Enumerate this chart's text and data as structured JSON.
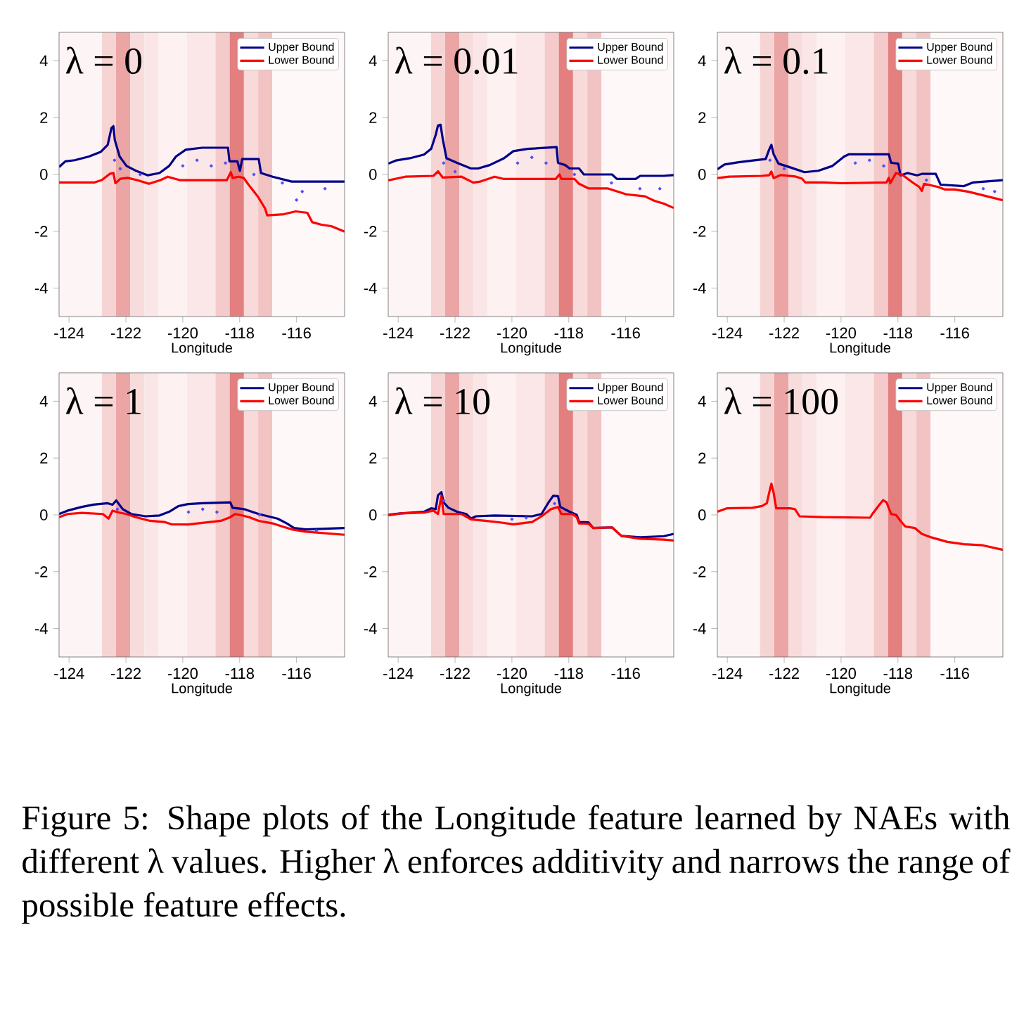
{
  "chart_data": [
    {
      "type": "line",
      "title": "λ = 0",
      "xlabel": "Longitude",
      "xlim": [
        -124.35,
        -114.31
      ],
      "ylim": [
        -5,
        5
      ],
      "xticks": [
        -124,
        -122,
        -120,
        -118,
        -116
      ],
      "yticks": [
        -4,
        -2,
        0,
        2,
        4
      ],
      "legend": "top right",
      "bands": [
        {
          "axis": "x",
          "from": -124.35,
          "to": -122.85,
          "color": "#fdf5f5"
        },
        {
          "axis": "x",
          "from": -122.85,
          "to": -122.35,
          "color": "#f7d4d4"
        },
        {
          "axis": "x",
          "from": -122.35,
          "to": -121.85,
          "color": "#eba5a5"
        },
        {
          "axis": "x",
          "from": -121.85,
          "to": -121.35,
          "color": "#f8dcdc"
        },
        {
          "axis": "x",
          "from": -121.35,
          "to": -120.85,
          "color": "#fae6e6"
        },
        {
          "axis": "x",
          "from": -120.85,
          "to": -119.85,
          "color": "#fdf1f1"
        },
        {
          "axis": "x",
          "from": -119.85,
          "to": -118.85,
          "color": "#fbe7e7"
        },
        {
          "axis": "x",
          "from": -118.85,
          "to": -118.35,
          "color": "#f4caca"
        },
        {
          "axis": "x",
          "from": -118.35,
          "to": -117.85,
          "color": "#e37f7f"
        },
        {
          "axis": "x",
          "from": -117.85,
          "to": -117.35,
          "color": "#f8dada"
        },
        {
          "axis": "x",
          "from": -117.35,
          "to": -116.85,
          "color": "#f2c3c3"
        },
        {
          "axis": "x",
          "from": -116.85,
          "to": -114.31,
          "color": "#fef8f8"
        }
      ],
      "series": [
        {
          "type": "scatter",
          "color": "#4d4dff",
          "x": [
            -122.4,
            -122.2,
            -121.5,
            -120.0,
            -119.5,
            -119.0,
            -118.5,
            -117.5,
            -116.5,
            -115.8,
            -115.0,
            -116.0
          ],
          "values": [
            0.5,
            0.2,
            0.0,
            0.3,
            0.5,
            0.3,
            0.4,
            0.0,
            -0.3,
            -0.6,
            -0.5,
            -0.9
          ]
        },
        {
          "type": "line",
          "name": "Upper Bound",
          "color": "#00008b",
          "x": [
            -124.35,
            -124.13,
            -123.8,
            -123.3,
            -122.89,
            -122.64,
            -122.51,
            -122.44,
            -122.39,
            -122.22,
            -121.98,
            -121.65,
            -121.23,
            -120.82,
            -120.48,
            -120.24,
            -119.9,
            -119.32,
            -118.41,
            -118.36,
            -118.08,
            -117.99,
            -117.91,
            -117.67,
            -117.33,
            -117.25,
            -116.84,
            -116.17,
            -114.31
          ],
          "values": [
            0.26,
            0.46,
            0.5,
            0.63,
            0.79,
            1.04,
            1.63,
            1.7,
            1.21,
            0.63,
            0.3,
            0.13,
            -0.03,
            0.05,
            0.3,
            0.63,
            0.87,
            0.94,
            0.94,
            0.46,
            0.46,
            0.13,
            0.54,
            0.54,
            0.54,
            0.05,
            -0.08,
            -0.25,
            -0.25
          ]
        },
        {
          "type": "line",
          "name": "Lower Bound",
          "color": "#ff0000",
          "x": [
            -124.35,
            -123.1,
            -122.85,
            -122.57,
            -122.44,
            -122.37,
            -122.19,
            -121.94,
            -121.61,
            -121.19,
            -120.78,
            -120.53,
            -120.11,
            -118.45,
            -118.31,
            -118.25,
            -118.03,
            -117.86,
            -117.69,
            -117.36,
            -117.11,
            -117.03,
            -116.45,
            -116.03,
            -115.62,
            -115.45,
            -115.12,
            -114.78,
            -114.31
          ],
          "values": [
            -0.28,
            -0.28,
            -0.2,
            0.02,
            0.05,
            -0.31,
            -0.15,
            -0.12,
            -0.2,
            -0.33,
            -0.2,
            -0.08,
            -0.2,
            -0.2,
            0.08,
            -0.12,
            -0.08,
            -0.12,
            -0.36,
            -0.78,
            -1.19,
            -1.44,
            -1.4,
            -1.3,
            -1.35,
            -1.68,
            -1.77,
            -1.82,
            -2.01
          ]
        }
      ]
    },
    {
      "type": "line",
      "title": "λ = 0.01",
      "xlabel": "Longitude",
      "xlim": [
        -124.35,
        -114.31
      ],
      "ylim": [
        -5,
        5
      ],
      "xticks": [
        -124,
        -122,
        -120,
        -118,
        -116
      ],
      "yticks": [
        -4,
        -2,
        0,
        2,
        4
      ],
      "legend": "top right",
      "bands": [
        {
          "axis": "x",
          "from": -124.35,
          "to": -122.85,
          "color": "#fdf5f5"
        },
        {
          "axis": "x",
          "from": -122.85,
          "to": -122.35,
          "color": "#f7d4d4"
        },
        {
          "axis": "x",
          "from": -122.35,
          "to": -121.85,
          "color": "#eba5a5"
        },
        {
          "axis": "x",
          "from": -121.85,
          "to": -121.35,
          "color": "#f8dcdc"
        },
        {
          "axis": "x",
          "from": -121.35,
          "to": -120.85,
          "color": "#fae6e6"
        },
        {
          "axis": "x",
          "from": -120.85,
          "to": -119.85,
          "color": "#fdf1f1"
        },
        {
          "axis": "x",
          "from": -119.85,
          "to": -118.85,
          "color": "#fbe7e7"
        },
        {
          "axis": "x",
          "from": -118.85,
          "to": -118.35,
          "color": "#f4caca"
        },
        {
          "axis": "x",
          "from": -118.35,
          "to": -117.85,
          "color": "#e37f7f"
        },
        {
          "axis": "x",
          "from": -117.85,
          "to": -117.35,
          "color": "#f8dada"
        },
        {
          "axis": "x",
          "from": -117.35,
          "to": -116.85,
          "color": "#f2c3c3"
        },
        {
          "axis": "x",
          "from": -116.85,
          "to": -114.31,
          "color": "#fef8f8"
        }
      ],
      "series": [
        {
          "type": "scatter",
          "color": "#4d4dff",
          "x": [
            -122.4,
            -122.0,
            -119.8,
            -119.3,
            -118.8,
            -117.8,
            -116.5,
            -115.5,
            -114.8
          ],
          "values": [
            0.4,
            0.1,
            0.4,
            0.6,
            0.4,
            0.0,
            -0.3,
            -0.5,
            -0.5
          ]
        },
        {
          "type": "line",
          "name": "Upper Bound",
          "color": "#00008b",
          "x": [
            -124.35,
            -124.08,
            -123.59,
            -123.09,
            -122.84,
            -122.68,
            -122.6,
            -122.51,
            -122.43,
            -122.3,
            -121.93,
            -121.44,
            -121.19,
            -120.78,
            -120.28,
            -119.95,
            -119.45,
            -118.96,
            -118.43,
            -118.38,
            -118.13,
            -117.97,
            -117.64,
            -117.47,
            -117.14,
            -116.48,
            -116.31,
            -115.65,
            -115.49,
            -114.66,
            -114.31
          ],
          "values": [
            0.38,
            0.49,
            0.57,
            0.7,
            0.9,
            1.39,
            1.72,
            1.75,
            1.23,
            0.57,
            0.41,
            0.21,
            0.21,
            0.33,
            0.57,
            0.82,
            0.9,
            0.93,
            0.96,
            0.41,
            0.33,
            0.21,
            0.21,
            0.0,
            0.0,
            0.0,
            -0.16,
            -0.16,
            -0.05,
            -0.05,
            -0.02
          ]
        },
        {
          "type": "line",
          "name": "Lower Bound",
          "color": "#ff0000",
          "x": [
            -124.35,
            -123.75,
            -122.76,
            -122.6,
            -122.43,
            -121.77,
            -121.36,
            -121.11,
            -120.61,
            -120.28,
            -118.46,
            -118.33,
            -118.26,
            -117.8,
            -117.64,
            -117.31,
            -116.64,
            -115.98,
            -115.32,
            -114.99,
            -114.66,
            -114.31
          ],
          "values": [
            -0.21,
            -0.08,
            -0.05,
            0.11,
            -0.11,
            -0.08,
            -0.29,
            -0.25,
            -0.08,
            -0.16,
            -0.16,
            0.0,
            -0.16,
            -0.16,
            -0.33,
            -0.49,
            -0.49,
            -0.7,
            -0.77,
            -0.93,
            -1.03,
            -1.18
          ]
        }
      ]
    },
    {
      "type": "line",
      "title": "λ = 0.1",
      "xlabel": "Longitude",
      "xlim": [
        -124.35,
        -114.31
      ],
      "ylim": [
        -5,
        5
      ],
      "xticks": [
        -124,
        -122,
        -120,
        -118,
        -116
      ],
      "yticks": [
        -4,
        -2,
        0,
        2,
        4
      ],
      "legend": "top right",
      "bands": [
        {
          "axis": "x",
          "from": -124.35,
          "to": -122.85,
          "color": "#fdf5f5"
        },
        {
          "axis": "x",
          "from": -122.85,
          "to": -122.35,
          "color": "#f7d4d4"
        },
        {
          "axis": "x",
          "from": -122.35,
          "to": -121.85,
          "color": "#eba5a5"
        },
        {
          "axis": "x",
          "from": -121.85,
          "to": -121.35,
          "color": "#f8dcdc"
        },
        {
          "axis": "x",
          "from": -121.35,
          "to": -120.85,
          "color": "#fae6e6"
        },
        {
          "axis": "x",
          "from": -120.85,
          "to": -119.85,
          "color": "#fdf1f1"
        },
        {
          "axis": "x",
          "from": -119.85,
          "to": -118.85,
          "color": "#fbe7e7"
        },
        {
          "axis": "x",
          "from": -118.85,
          "to": -118.35,
          "color": "#f4caca"
        },
        {
          "axis": "x",
          "from": -118.35,
          "to": -117.85,
          "color": "#e37f7f"
        },
        {
          "axis": "x",
          "from": -117.85,
          "to": -117.35,
          "color": "#f8dada"
        },
        {
          "axis": "x",
          "from": -117.35,
          "to": -116.85,
          "color": "#f2c3c3"
        },
        {
          "axis": "x",
          "from": -116.85,
          "to": -114.31,
          "color": "#fef8f8"
        }
      ],
      "series": [
        {
          "type": "scatter",
          "color": "#4d4dff",
          "x": [
            -122.5,
            -122.0,
            -119.5,
            -119.0,
            -118.5,
            -117.0,
            -115.0,
            -114.6
          ],
          "values": [
            0.5,
            0.2,
            0.4,
            0.5,
            0.3,
            -0.2,
            -0.5,
            -0.6
          ]
        },
        {
          "type": "line",
          "name": "Upper Bound",
          "color": "#00008b",
          "x": [
            -124.35,
            -124.1,
            -123.6,
            -122.94,
            -122.65,
            -122.53,
            -122.45,
            -122.37,
            -122.2,
            -121.79,
            -121.29,
            -120.8,
            -120.3,
            -119.89,
            -119.72,
            -118.32,
            -118.24,
            -117.99,
            -117.91,
            -117.66,
            -117.33,
            -117.16,
            -116.67,
            -116.5,
            -115.68,
            -115.35,
            -114.31
          ],
          "values": [
            0.18,
            0.35,
            0.43,
            0.51,
            0.54,
            0.87,
            1.04,
            0.71,
            0.38,
            0.25,
            0.08,
            0.13,
            0.3,
            0.63,
            0.71,
            0.71,
            0.41,
            0.38,
            -0.03,
            0.05,
            -0.03,
            0.02,
            0.02,
            -0.36,
            -0.41,
            -0.28,
            -0.2
          ]
        },
        {
          "type": "line",
          "name": "Lower Bound",
          "color": "#ff0000",
          "x": [
            -124.35,
            -123.93,
            -122.78,
            -122.53,
            -122.45,
            -122.37,
            -122.12,
            -121.62,
            -121.37,
            -121.26,
            -120.63,
            -119.97,
            -118.4,
            -118.32,
            -118.27,
            -118.07,
            -117.82,
            -117.49,
            -117.25,
            -117.16,
            -117.08,
            -116.59,
            -116.34,
            -116.01,
            -115.51,
            -114.31
          ],
          "values": [
            -0.13,
            -0.08,
            -0.05,
            -0.03,
            0.1,
            -0.13,
            -0.02,
            -0.07,
            -0.15,
            -0.28,
            -0.28,
            -0.31,
            -0.28,
            -0.12,
            -0.31,
            0.05,
            -0.03,
            -0.28,
            -0.44,
            -0.58,
            -0.33,
            -0.44,
            -0.53,
            -0.53,
            -0.61,
            -0.91
          ]
        }
      ]
    },
    {
      "type": "line",
      "title": "λ = 1",
      "xlabel": "Longitude",
      "xlim": [
        -124.35,
        -114.31
      ],
      "ylim": [
        -5,
        5
      ],
      "xticks": [
        -124,
        -122,
        -120,
        -118,
        -116
      ],
      "yticks": [
        -4,
        -2,
        0,
        2,
        4
      ],
      "legend": "top right",
      "bands": [
        {
          "axis": "x",
          "from": -124.35,
          "to": -122.85,
          "color": "#fdf5f5"
        },
        {
          "axis": "x",
          "from": -122.85,
          "to": -122.35,
          "color": "#f7d4d4"
        },
        {
          "axis": "x",
          "from": -122.35,
          "to": -121.85,
          "color": "#eba5a5"
        },
        {
          "axis": "x",
          "from": -121.85,
          "to": -121.35,
          "color": "#f8dcdc"
        },
        {
          "axis": "x",
          "from": -121.35,
          "to": -120.85,
          "color": "#fae6e6"
        },
        {
          "axis": "x",
          "from": -120.85,
          "to": -119.85,
          "color": "#fdf1f1"
        },
        {
          "axis": "x",
          "from": -119.85,
          "to": -118.85,
          "color": "#fbe7e7"
        },
        {
          "axis": "x",
          "from": -118.85,
          "to": -118.35,
          "color": "#f4caca"
        },
        {
          "axis": "x",
          "from": -118.35,
          "to": -117.85,
          "color": "#e37f7f"
        },
        {
          "axis": "x",
          "from": -117.85,
          "to": -117.35,
          "color": "#f8dada"
        },
        {
          "axis": "x",
          "from": -117.35,
          "to": -116.85,
          "color": "#f2c3c3"
        },
        {
          "axis": "x",
          "from": -116.85,
          "to": -114.31,
          "color": "#fef8f8"
        }
      ],
      "series": [
        {
          "type": "scatter",
          "color": "#4d4dff",
          "x": [
            -122.3,
            -119.8,
            -119.3,
            -118.8,
            -117.3,
            -115.3
          ],
          "values": [
            0.2,
            0.1,
            0.2,
            0.1,
            0.0,
            -0.55
          ]
        },
        {
          "type": "line",
          "name": "Upper Bound",
          "color": "#00008b",
          "x": [
            -124.35,
            -124.05,
            -123.55,
            -123.14,
            -122.64,
            -122.47,
            -122.34,
            -122.23,
            -122.11,
            -121.81,
            -121.31,
            -120.82,
            -120.48,
            -120.15,
            -119.82,
            -119.32,
            -118.33,
            -118.25,
            -117.83,
            -117.33,
            -116.67,
            -116.34,
            -116.09,
            -115.67,
            -114.31
          ],
          "values": [
            0.03,
            0.15,
            0.28,
            0.36,
            0.41,
            0.36,
            0.51,
            0.36,
            0.2,
            0.03,
            -0.05,
            -0.02,
            0.11,
            0.31,
            0.38,
            0.41,
            0.44,
            0.25,
            0.2,
            0.03,
            -0.13,
            -0.3,
            -0.46,
            -0.51,
            -0.46
          ]
        },
        {
          "type": "line",
          "name": "Lower Bound",
          "color": "#ff0000",
          "x": [
            -124.35,
            -124.05,
            -123.55,
            -122.81,
            -122.61,
            -122.47,
            -122.23,
            -121.98,
            -121.65,
            -121.15,
            -120.65,
            -120.4,
            -119.82,
            -118.66,
            -118.33,
            -118.16,
            -117.91,
            -117.67,
            -117.33,
            -116.84,
            -116.5,
            -116.17,
            -115.67,
            -114.31
          ],
          "values": [
            -0.08,
            0.03,
            0.07,
            0.03,
            -0.13,
            0.15,
            0.08,
            0.03,
            -0.08,
            -0.21,
            -0.25,
            -0.33,
            -0.34,
            -0.21,
            -0.08,
            0.03,
            -0.02,
            -0.08,
            -0.21,
            -0.3,
            -0.41,
            -0.51,
            -0.59,
            -0.7
          ]
        }
      ]
    },
    {
      "type": "line",
      "title": "λ = 10",
      "xlabel": "Longitude",
      "xlim": [
        -124.35,
        -114.31
      ],
      "ylim": [
        -5,
        5
      ],
      "xticks": [
        -124,
        -122,
        -120,
        -118,
        -116
      ],
      "yticks": [
        -4,
        -2,
        0,
        2,
        4
      ],
      "legend": "top right",
      "bands": [
        {
          "axis": "x",
          "from": -124.35,
          "to": -122.85,
          "color": "#fdf5f5"
        },
        {
          "axis": "x",
          "from": -122.85,
          "to": -122.35,
          "color": "#f7d4d4"
        },
        {
          "axis": "x",
          "from": -122.35,
          "to": -121.85,
          "color": "#eba5a5"
        },
        {
          "axis": "x",
          "from": -121.85,
          "to": -121.35,
          "color": "#f8dcdc"
        },
        {
          "axis": "x",
          "from": -121.35,
          "to": -120.85,
          "color": "#fae6e6"
        },
        {
          "axis": "x",
          "from": -120.85,
          "to": -119.85,
          "color": "#fdf1f1"
        },
        {
          "axis": "x",
          "from": -119.85,
          "to": -118.85,
          "color": "#fbe7e7"
        },
        {
          "axis": "x",
          "from": -118.85,
          "to": -118.35,
          "color": "#f4caca"
        },
        {
          "axis": "x",
          "from": -118.35,
          "to": -117.85,
          "color": "#e37f7f"
        },
        {
          "axis": "x",
          "from": -117.85,
          "to": -117.35,
          "color": "#f8dada"
        },
        {
          "axis": "x",
          "from": -117.35,
          "to": -116.85,
          "color": "#f2c3c3"
        },
        {
          "axis": "x",
          "from": -116.85,
          "to": -114.31,
          "color": "#fef8f8"
        }
      ],
      "series": [
        {
          "type": "scatter",
          "color": "#4d4dff",
          "x": [
            -122.4,
            -120.0,
            -119.5,
            -118.5
          ],
          "values": [
            0.5,
            -0.15,
            -0.1,
            0.4
          ]
        },
        {
          "type": "line",
          "name": "Upper Bound",
          "color": "#00008b",
          "x": [
            -124.35,
            -123.92,
            -123.09,
            -122.84,
            -122.68,
            -122.6,
            -122.48,
            -122.4,
            -122.23,
            -121.93,
            -121.6,
            -121.44,
            -121.27,
            -120.61,
            -119.29,
            -118.96,
            -118.71,
            -118.55,
            -118.38,
            -118.3,
            -117.97,
            -117.72,
            -117.64,
            -117.31,
            -117.14,
            -116.48,
            -116.15,
            -115.49,
            -114.66,
            -114.31
          ],
          "values": [
            0.0,
            0.05,
            0.11,
            0.23,
            0.2,
            0.69,
            0.8,
            0.44,
            0.25,
            0.11,
            0.03,
            -0.13,
            -0.05,
            -0.02,
            -0.05,
            0.03,
            0.44,
            0.67,
            0.66,
            0.28,
            0.11,
            0.0,
            -0.25,
            -0.26,
            -0.46,
            -0.44,
            -0.74,
            -0.79,
            -0.75,
            -0.67
          ]
        },
        {
          "type": "line",
          "name": "Lower Bound",
          "color": "#ff0000",
          "x": [
            -124.35,
            -123.92,
            -123.09,
            -122.76,
            -122.6,
            -122.48,
            -122.4,
            -121.77,
            -121.44,
            -120.94,
            -120.45,
            -119.95,
            -119.29,
            -118.96,
            -118.63,
            -118.38,
            -118.26,
            -117.88,
            -117.72,
            -117.64,
            -117.31,
            -117.14,
            -116.48,
            -116.15,
            -115.49,
            -114.66,
            -114.31
          ],
          "values": [
            -0.02,
            0.05,
            0.08,
            0.15,
            0.03,
            0.67,
            0.03,
            0.03,
            -0.16,
            -0.21,
            -0.26,
            -0.33,
            -0.25,
            -0.05,
            0.2,
            0.28,
            0.03,
            0.03,
            -0.08,
            -0.3,
            -0.31,
            -0.46,
            -0.44,
            -0.74,
            -0.84,
            -0.87,
            -0.9
          ]
        }
      ]
    },
    {
      "type": "line",
      "title": "λ = 100",
      "xlabel": "Longitude",
      "xlim": [
        -124.35,
        -114.31
      ],
      "ylim": [
        -5,
        5
      ],
      "xticks": [
        -124,
        -122,
        -120,
        -118,
        -116
      ],
      "yticks": [
        -4,
        -2,
        0,
        2,
        4
      ],
      "legend": "top right",
      "bands": [
        {
          "axis": "x",
          "from": -124.35,
          "to": -122.85,
          "color": "#fdf5f5"
        },
        {
          "axis": "x",
          "from": -122.85,
          "to": -122.35,
          "color": "#f7d4d4"
        },
        {
          "axis": "x",
          "from": -122.35,
          "to": -121.85,
          "color": "#eba5a5"
        },
        {
          "axis": "x",
          "from": -121.85,
          "to": -121.35,
          "color": "#f8dcdc"
        },
        {
          "axis": "x",
          "from": -121.35,
          "to": -120.85,
          "color": "#fae6e6"
        },
        {
          "axis": "x",
          "from": -120.85,
          "to": -119.85,
          "color": "#fdf1f1"
        },
        {
          "axis": "x",
          "from": -119.85,
          "to": -118.85,
          "color": "#fbe7e7"
        },
        {
          "axis": "x",
          "from": -118.85,
          "to": -118.35,
          "color": "#f4caca"
        },
        {
          "axis": "x",
          "from": -118.35,
          "to": -117.85,
          "color": "#e37f7f"
        },
        {
          "axis": "x",
          "from": -117.85,
          "to": -117.35,
          "color": "#f8dada"
        },
        {
          "axis": "x",
          "from": -117.35,
          "to": -116.85,
          "color": "#f2c3c3"
        },
        {
          "axis": "x",
          "from": -116.85,
          "to": -114.31,
          "color": "#fef8f8"
        }
      ],
      "series": [
        {
          "type": "line",
          "name": "Upper Bound",
          "color": "#00008b"
        },
        {
          "type": "line",
          "name": "Lower Bound",
          "color": "#ff0000",
          "x": [
            -124.35,
            -124.02,
            -123.11,
            -122.78,
            -122.61,
            -122.53,
            -122.45,
            -122.37,
            -122.28,
            -121.79,
            -121.62,
            -121.46,
            -120.63,
            -118.98,
            -118.9,
            -118.65,
            -118.52,
            -118.4,
            -118.24,
            -118.07,
            -117.91,
            -117.74,
            -117.41,
            -117.16,
            -116.83,
            -116.26,
            -115.68,
            -115.02,
            -114.31
          ],
          "values": [
            0.11,
            0.23,
            0.25,
            0.31,
            0.41,
            0.77,
            1.1,
            0.77,
            0.23,
            0.23,
            0.2,
            -0.05,
            -0.08,
            -0.1,
            0.03,
            0.36,
            0.52,
            0.44,
            0.03,
            0.0,
            -0.21,
            -0.41,
            -0.46,
            -0.67,
            -0.79,
            -0.95,
            -1.03,
            -1.07,
            -1.23
          ]
        }
      ]
    },
    {
      "type": "other",
      "annotations": [
        "Figure 5: Shape plots of the Longitude feature learned by NAEs with different λ values. Higher λ enforces additivity and narrows the range of possible feature effects."
      ]
    }
  ]
}
